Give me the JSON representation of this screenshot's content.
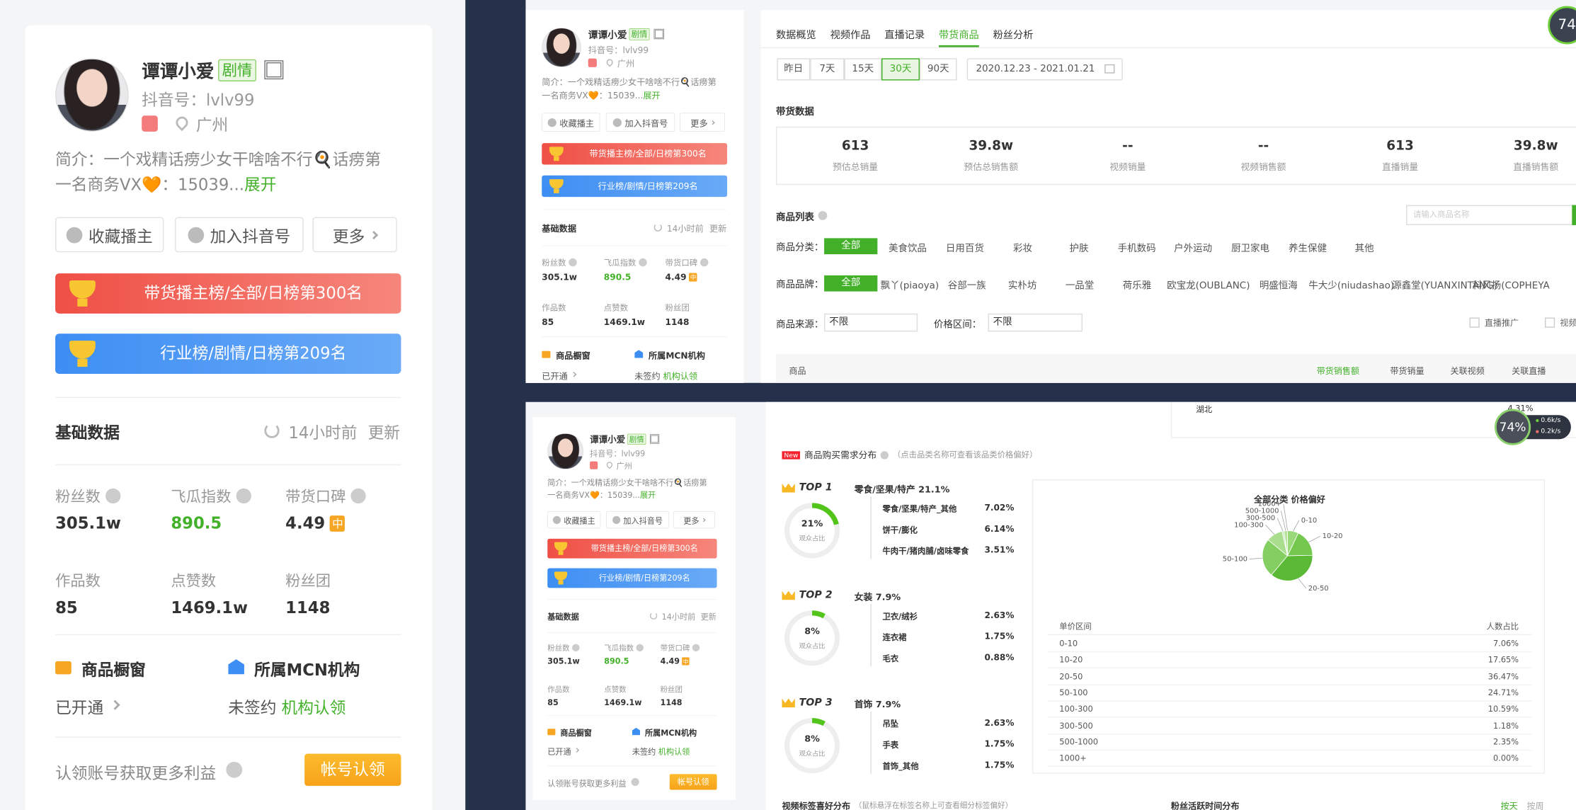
{
  "profile": {
    "name": "谭谭小爱",
    "tag": "剧情",
    "douyin_id": "抖音号：lvlv99",
    "location": "广州",
    "bio": "简介：一个戏精话痨少女干啥啥不行🍳话痨第一名商务VX🧡：15039...",
    "bio_expand": "展开",
    "buttons": [
      "收藏播主",
      "加入抖音号",
      "更多"
    ],
    "rank_sales": "带货播主榜/全部/日榜第300名",
    "rank_industry": "行业榜/剧情/日榜第209名",
    "basic": {
      "title": "基础数据",
      "updated": "14小时前",
      "refresh": "更新"
    },
    "stats": [
      {
        "label": "粉丝数",
        "value": "305.1w"
      },
      {
        "label": "飞瓜指数",
        "value": 890.5,
        "color": "#43b02a"
      },
      {
        "label": "带货口碑",
        "value": 4.49,
        "badge": "中"
      },
      {
        "label": "作品数",
        "value": 85
      },
      {
        "label": "点赞数",
        "value": "1469.1w"
      },
      {
        "label": "粉丝团",
        "value": 1148
      }
    ],
    "showcase": {
      "title": "商品橱窗",
      "status": "已开通"
    },
    "mcn": {
      "title": "所属MCN机构",
      "status": "未签约",
      "action": "机构认领"
    },
    "claim": {
      "text": "认领账号获取更多利益",
      "button": "帐号认领"
    }
  },
  "goods": {
    "tabs": [
      {
        "label": "数据概览"
      },
      {
        "label": "视频作品"
      },
      {
        "label": "直播记录"
      },
      {
        "label": "带货商品",
        "active": true
      },
      {
        "label": "粉丝分析"
      }
    ],
    "periods": [
      {
        "label": "昨日"
      },
      {
        "label": "7天"
      },
      {
        "label": "15天"
      },
      {
        "label": "30天",
        "active": true
      },
      {
        "label": "90天"
      }
    ],
    "date_range": "2020.12.23 - 2021.01.21",
    "sales_title": "带货数据",
    "sales_stats": [
      {
        "value": 613,
        "label": "预估总销量"
      },
      {
        "value": "39.8w",
        "label": "预估总销售额"
      },
      {
        "value": "--",
        "label": "视频销量"
      },
      {
        "value": "--",
        "label": "视频销售额"
      },
      {
        "value": 613,
        "label": "直播销量"
      },
      {
        "value": "39.8w",
        "label": "直播销售额"
      }
    ],
    "list_title": "商品列表",
    "search_placeholder": "请输入商品名称",
    "category_label": "商品分类：",
    "categories": [
      {
        "label": "全部",
        "active": true
      },
      {
        "label": "美食饮品"
      },
      {
        "label": "日用百货"
      },
      {
        "label": "彩妆"
      },
      {
        "label": "护肤"
      },
      {
        "label": "手机数码"
      },
      {
        "label": "户外运动"
      },
      {
        "label": "厨卫家电"
      },
      {
        "label": "养生保健"
      },
      {
        "label": "其他"
      }
    ],
    "brand_label": "商品品牌：",
    "brands": [
      {
        "label": "全部",
        "active": true
      },
      {
        "label": "飘丫(piaoya)"
      },
      {
        "label": "谷部一族"
      },
      {
        "label": "实朴坊"
      },
      {
        "label": "一品堂"
      },
      {
        "label": "荷乐雅"
      },
      {
        "label": "欧宝龙(OUBLANC)"
      },
      {
        "label": "明盛恒海"
      },
      {
        "label": "牛大少(niudashao)"
      },
      {
        "label": "源鑫堂(YUANXINTANG)"
      },
      {
        "label": "科风扬(COPHEYA"
      }
    ],
    "source_label": "商品来源：",
    "source_value": "不限",
    "price_label": "价格区间：",
    "price_value": "不限",
    "checks": [
      "直播推广",
      "视频"
    ],
    "table_headers": [
      {
        "label": "商品"
      },
      {
        "label": "带货销售额",
        "active": true
      },
      {
        "label": "带货销量"
      },
      {
        "label": "关联视频"
      },
      {
        "label": "关联直播"
      }
    ]
  },
  "demand": {
    "region": {
      "name": "湖北",
      "pct": "4.31%"
    },
    "new_tag": "New",
    "title": "商品购买需求分布",
    "note": "（点击品类名称可查看该品类价格偏好）",
    "tops": [
      {
        "rank": "TOP 1",
        "title": "零食/坚果/特产 21.1%",
        "share": 21,
        "share_label": "21%",
        "share_caption": "观众占比",
        "items": [
          {
            "name": "零食/坚果/特产_其他",
            "pct": "7.02%"
          },
          {
            "name": "饼干/膨化",
            "pct": "6.14%"
          },
          {
            "name": "牛肉干/猪肉脯/卤味零食",
            "pct": "3.51%"
          }
        ]
      },
      {
        "rank": "TOP 2",
        "title": "女装 7.9%",
        "share": 8,
        "share_label": "8%",
        "share_caption": "观众占比",
        "items": [
          {
            "name": "卫衣/绒衫",
            "pct": "2.63%"
          },
          {
            "name": "连衣裙",
            "pct": "1.75%"
          },
          {
            "name": "毛衣",
            "pct": "0.88%"
          }
        ]
      },
      {
        "rank": "TOP 3",
        "title": "首饰 7.9%",
        "share": 8,
        "share_label": "8%",
        "share_caption": "观众占比",
        "items": [
          {
            "name": "吊坠",
            "pct": "2.63%"
          },
          {
            "name": "手表",
            "pct": "1.75%"
          },
          {
            "name": "首饰_其他",
            "pct": "1.75%"
          }
        ]
      }
    ]
  },
  "price_preference": {
    "type": "pie",
    "title": "全部分类 价格偏好",
    "headers": [
      "单价区间",
      "人数占比"
    ],
    "categories": [
      "0-10",
      "10-20",
      "20-50",
      "50-100",
      "100-300",
      "300-500",
      "500-1000",
      "1000+"
    ],
    "values": [
      7.06,
      17.65,
      36.47,
      24.71,
      10.59,
      1.18,
      2.35,
      0.0
    ],
    "value_labels": [
      "7.06%",
      "17.65%",
      "36.47%",
      "24.71%",
      "10.59%",
      "1.18%",
      "2.35%",
      "0.00%"
    ],
    "colors": [
      "#9ad97a",
      "#74c850",
      "#5bb935",
      "#84cf61",
      "#a9de8e",
      "#c5eab2",
      "#b6e49f",
      "#d9f1cc"
    ]
  },
  "footer": {
    "video_tags": "视频标签喜好分布",
    "video_tags_note": "（鼠标悬浮在标签名称上可查看细分标签偏好）",
    "fan_active": "粉丝活跃时间分布",
    "by_day": "按天",
    "by_week": "按周"
  },
  "badges": {
    "score_top": "74",
    "score_bottom": "74%",
    "upload": "0.6k/s",
    "download": "0.2k/s"
  }
}
